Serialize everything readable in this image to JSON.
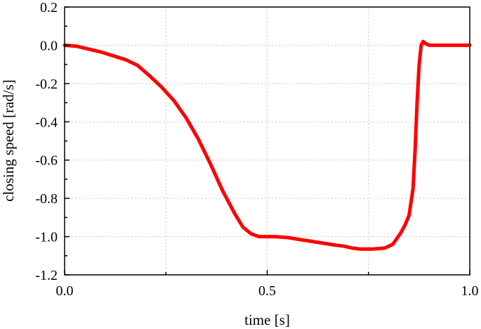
{
  "chart_data": {
    "type": "line",
    "title": "",
    "xlabel": "time [s]",
    "ylabel": "closing speed [rad/s]",
    "xlim": [
      0.0,
      1.0
    ],
    "ylim": [
      -1.2,
      0.2
    ],
    "x_ticks": [
      "0.0",
      "0.5",
      "1.0"
    ],
    "y_ticks": [
      "0.2",
      "0.0",
      "-0.2",
      "-0.4",
      "-0.6",
      "-0.8",
      "-1.0",
      "-1.2"
    ],
    "grid": true,
    "series": [
      {
        "color": "#ff0000",
        "x": [
          0.0,
          0.03,
          0.06,
          0.09,
          0.12,
          0.15,
          0.18,
          0.21,
          0.24,
          0.27,
          0.3,
          0.33,
          0.36,
          0.39,
          0.42,
          0.44,
          0.46,
          0.48,
          0.5,
          0.52,
          0.55,
          0.58,
          0.61,
          0.64,
          0.67,
          0.69,
          0.71,
          0.73,
          0.76,
          0.79,
          0.81,
          0.83,
          0.84,
          0.85,
          0.86,
          0.865,
          0.87,
          0.875,
          0.88,
          0.885,
          0.89,
          0.9,
          0.92,
          0.95,
          1.0
        ],
        "y": [
          0.0,
          -0.005,
          -0.02,
          -0.035,
          -0.055,
          -0.075,
          -0.105,
          -0.16,
          -0.22,
          -0.29,
          -0.38,
          -0.49,
          -0.62,
          -0.76,
          -0.88,
          -0.95,
          -0.985,
          -1.0,
          -1.0,
          -1.0,
          -1.005,
          -1.015,
          -1.025,
          -1.035,
          -1.045,
          -1.05,
          -1.06,
          -1.065,
          -1.065,
          -1.06,
          -1.04,
          -0.98,
          -0.94,
          -0.89,
          -0.75,
          -0.55,
          -0.3,
          -0.1,
          0.0,
          0.02,
          0.01,
          0.0,
          0.0,
          0.0,
          0.0
        ]
      }
    ]
  }
}
